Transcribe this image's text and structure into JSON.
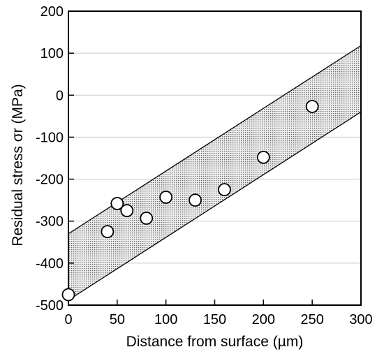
{
  "chart_data": {
    "type": "scatter",
    "title": "",
    "xlabel": "Distance from surface (µm)",
    "ylabel": "Residual stress σr (MPa)",
    "xlim": [
      0,
      300
    ],
    "ylim": [
      -500,
      200
    ],
    "x_ticks": [
      0,
      50,
      100,
      150,
      200,
      250,
      300
    ],
    "y_ticks": [
      200,
      100,
      0,
      -100,
      -200,
      -300,
      -400,
      -500
    ],
    "x_tick_labels": [
      "0",
      "50",
      "100",
      "150",
      "200",
      "250",
      "300"
    ],
    "y_tick_labels": [
      "200",
      "100",
      "0",
      "-100",
      "-200",
      "-300",
      "-400",
      "-500"
    ],
    "grid": "horizontal",
    "legend": "none",
    "band": {
      "upper": {
        "x": [
          0,
          300
        ],
        "y": [
          -330,
          118
        ]
      },
      "lower": {
        "x": [
          0,
          300
        ],
        "y": [
          -488,
          -40
        ]
      }
    },
    "series": [
      {
        "x": [
          0,
          40,
          50,
          60,
          80,
          100,
          130,
          160,
          200,
          250
        ],
        "y": [
          -475,
          -325,
          -258,
          -275,
          -293,
          -243,
          -250,
          -225,
          -148,
          -27
        ]
      }
    ],
    "colors": {
      "band_fill": "#d4d4d4",
      "marker_fill": "#ffffff",
      "stroke": "#000000",
      "grid": "#c8c8c8"
    }
  }
}
